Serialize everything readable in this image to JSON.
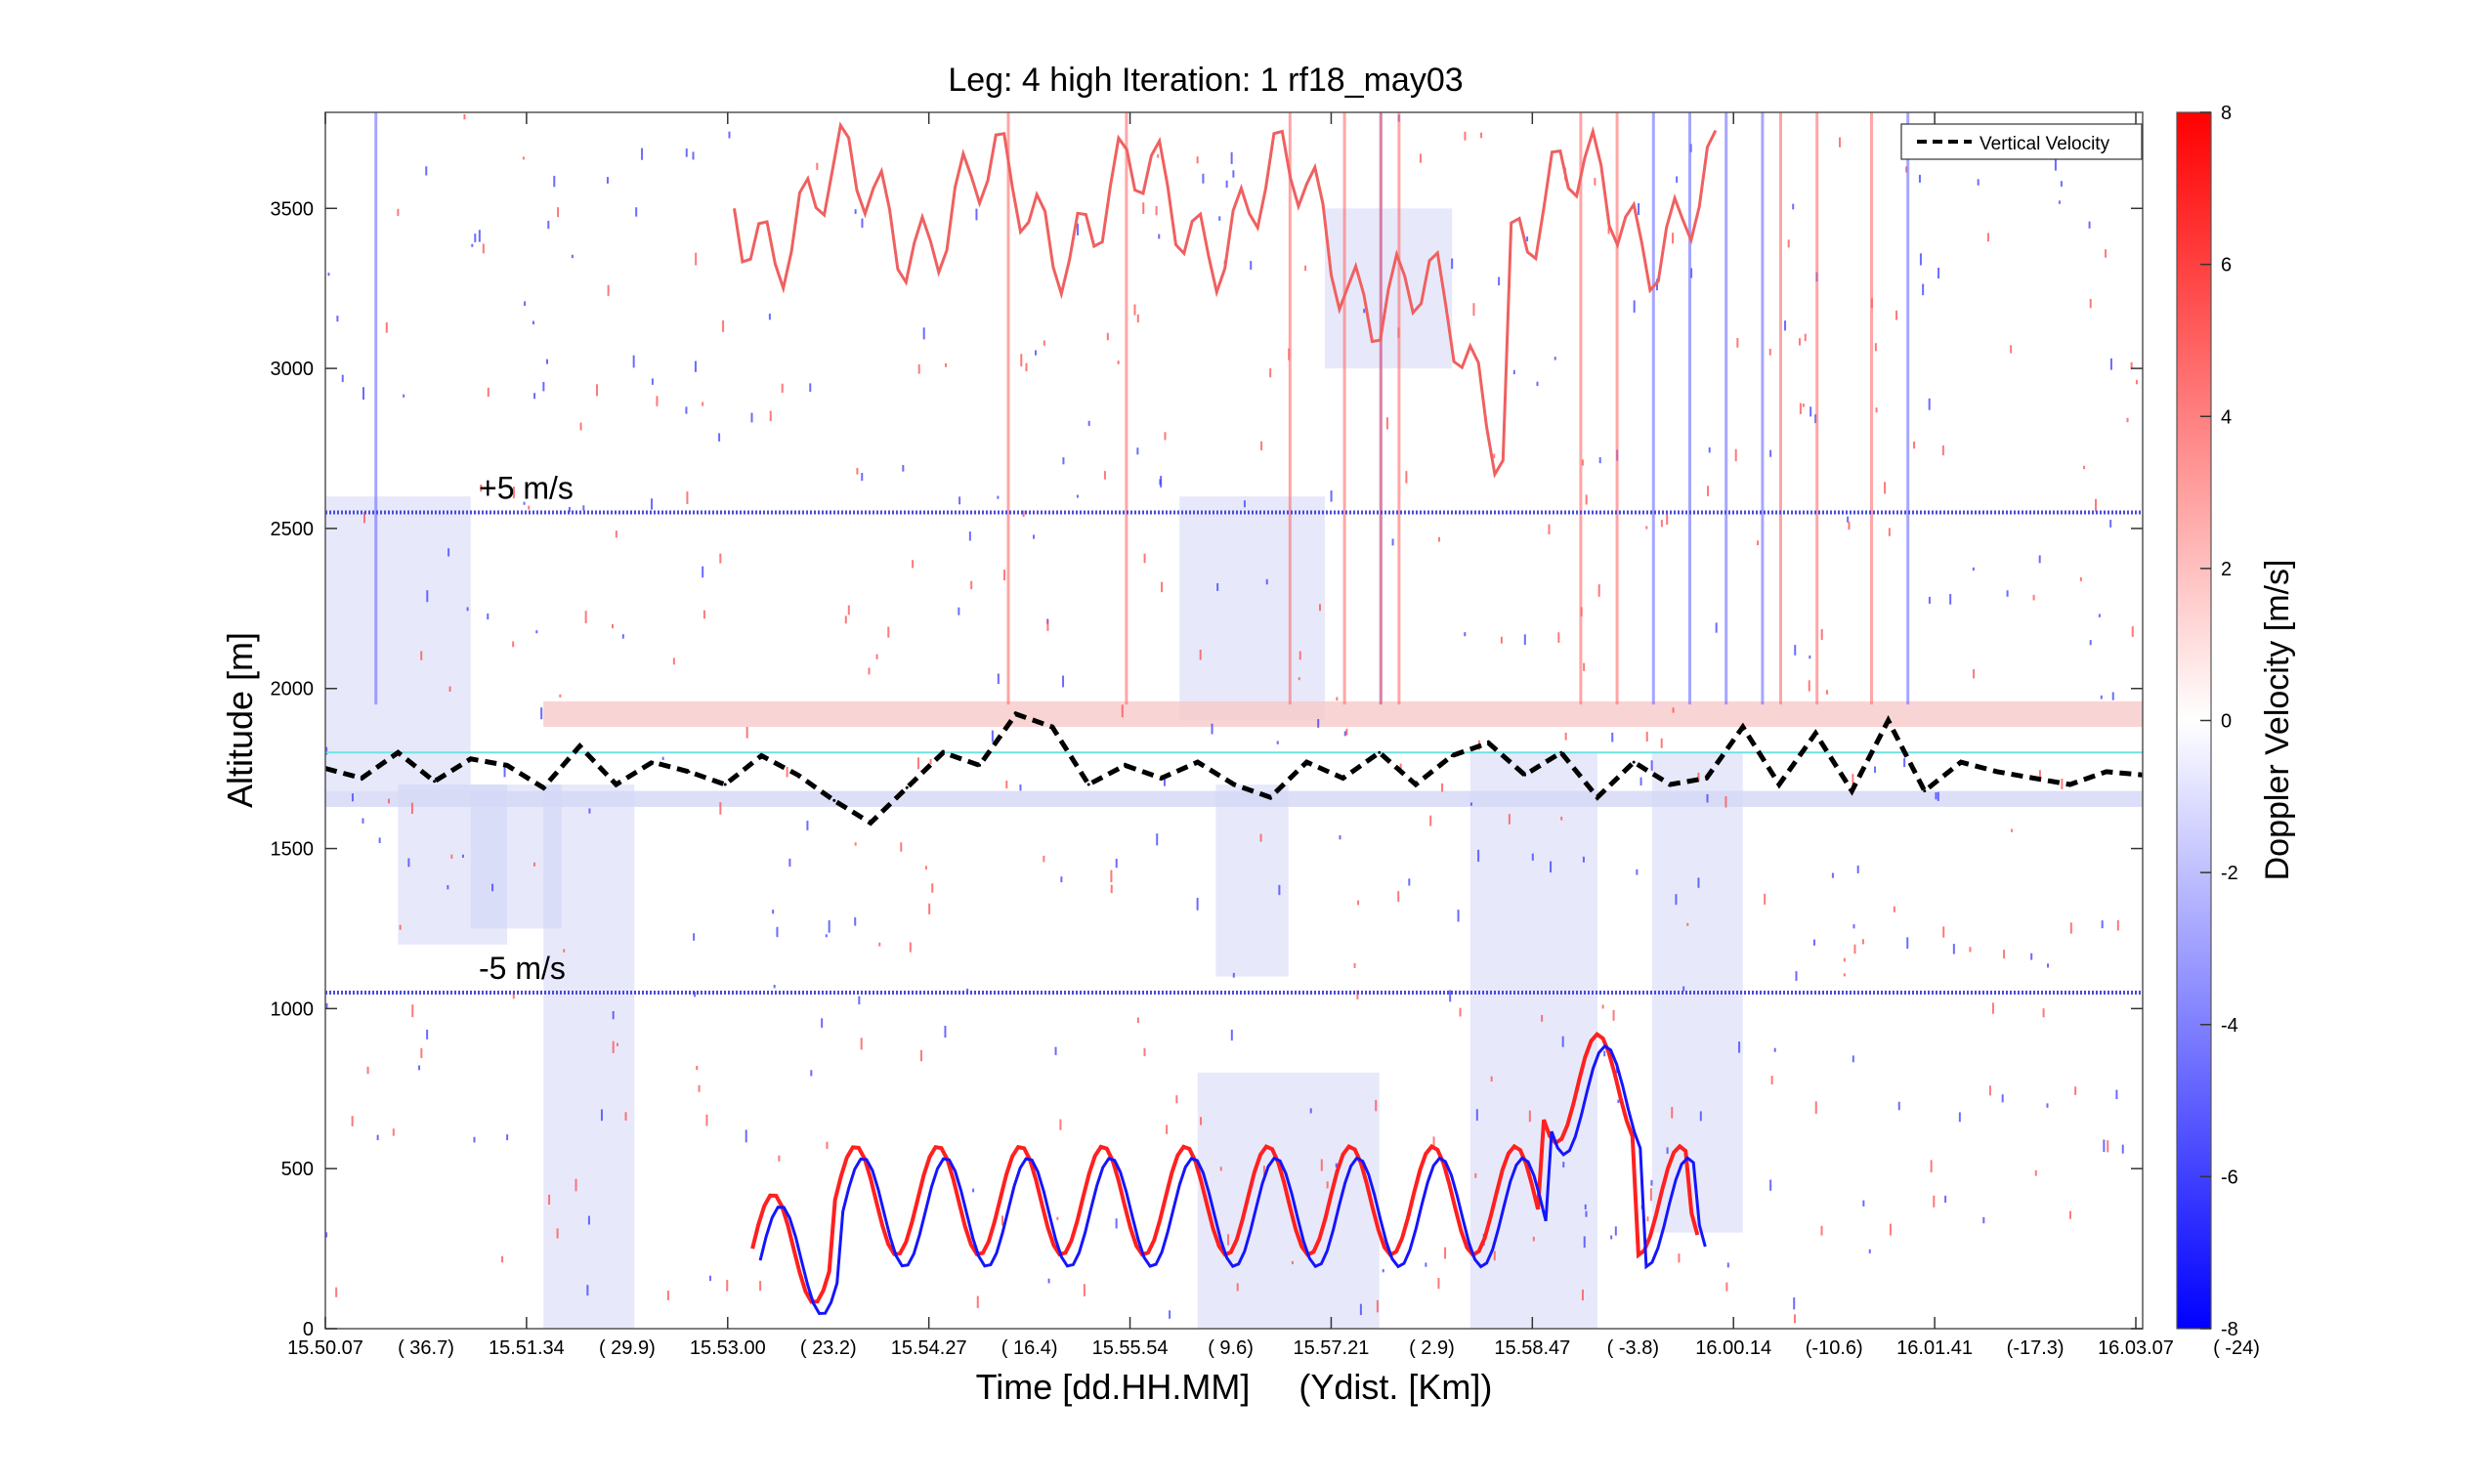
{
  "chart_data": {
    "type": "heatmap",
    "title": "Leg: 4 high Iteration: 1  rf18_may03",
    "xlabel": "Time [dd.HH.MM]     (Ydist. [Km])",
    "ylabel": "Altitude [m]",
    "ylim": [
      0,
      3800
    ],
    "y_ticks": [
      0,
      500,
      1000,
      1500,
      2000,
      2500,
      3000,
      3500
    ],
    "x_ticks": [
      {
        "time": "15.50.07",
        "ydist": "( 36.7)"
      },
      {
        "time": "15.51.34",
        "ydist": "( 29.9)"
      },
      {
        "time": "15.53.00",
        "ydist": "( 23.2)"
      },
      {
        "time": "15.54.27",
        "ydist": "( 16.4)"
      },
      {
        "time": "15.55.54",
        "ydist": "(  9.6)"
      },
      {
        "time": "15.57.21",
        "ydist": "(  2.9)"
      },
      {
        "time": "15.58.47",
        "ydist": "( -3.8)"
      },
      {
        "time": "16.00.14",
        "ydist": "(-10.6)"
      },
      {
        "time": "16.01.41",
        "ydist": "(-17.3)"
      },
      {
        "time": "16.03.07",
        "ydist": "(  -24)"
      }
    ],
    "grid": false,
    "colorbar": {
      "label": "Doppler Velocity [m/s]",
      "range": [
        -8,
        8
      ],
      "ticks": [
        -8,
        -6,
        -4,
        -2,
        0,
        2,
        4,
        6,
        8
      ],
      "colors": {
        "low": "#0000ff",
        "mid": "#ffffff",
        "high": "#ff0000"
      }
    },
    "legend": {
      "entries": [
        "Vertical Velocity"
      ],
      "placement": "top-right"
    },
    "reference_lines": [
      {
        "label": "+5 m/s",
        "altitude": 2550,
        "color": "#4a4ae0"
      },
      {
        "label": "-5 m/s",
        "altitude": 1050,
        "color": "#4a4ae0"
      },
      {
        "label": "",
        "altitude": 1800,
        "color": "#6fe3e3"
      }
    ],
    "series": [
      {
        "name": "Vertical Velocity",
        "style": "dashed",
        "color": "#000000",
        "x_fraction": [
          0,
          0.02,
          0.04,
          0.06,
          0.08,
          0.1,
          0.12,
          0.14,
          0.16,
          0.18,
          0.2,
          0.22,
          0.24,
          0.26,
          0.28,
          0.3,
          0.32,
          0.34,
          0.36,
          0.38,
          0.4,
          0.42,
          0.44,
          0.46,
          0.48,
          0.5,
          0.52,
          0.54,
          0.56,
          0.58,
          0.6,
          0.62,
          0.64,
          0.66,
          0.68,
          0.7,
          0.72,
          0.74,
          0.76,
          0.78,
          0.8,
          0.82,
          0.84,
          0.86,
          0.88,
          0.9,
          0.92,
          0.94,
          0.96,
          0.98,
          1.0
        ],
        "altitude_m": [
          1750,
          1720,
          1800,
          1710,
          1780,
          1760,
          1690,
          1820,
          1700,
          1770,
          1740,
          1700,
          1790,
          1730,
          1650,
          1580,
          1690,
          1800,
          1760,
          1920,
          1880,
          1700,
          1760,
          1720,
          1770,
          1700,
          1660,
          1770,
          1720,
          1800,
          1700,
          1790,
          1830,
          1730,
          1800,
          1660,
          1770,
          1700,
          1720,
          1880,
          1700,
          1860,
          1680,
          1900,
          1680,
          1770,
          1740,
          1720,
          1700,
          1740,
          1730
        ]
      }
    ]
  }
}
